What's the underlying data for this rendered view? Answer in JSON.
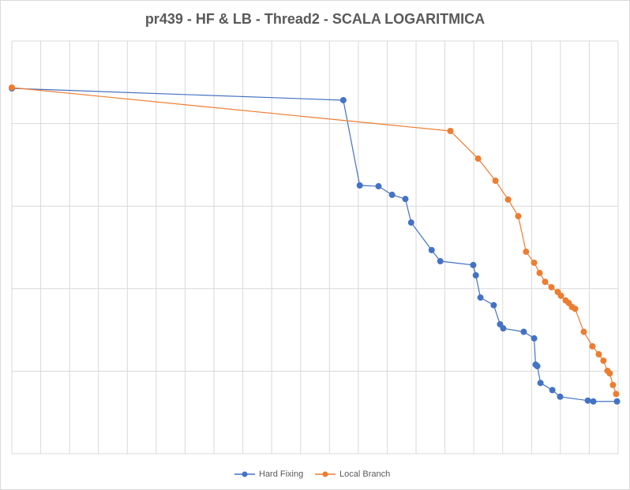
{
  "chart_data": {
    "type": "line",
    "title": "pr439 - HF & LB - Thread2 - SCALA LOGARITMICA",
    "series": [
      {
        "name": "Hard Fixing",
        "color": "#4472c4",
        "x": [
          0,
          11.48,
          12.05,
          12.7,
          13.17,
          13.63,
          13.83,
          14.54,
          14.84,
          15.98,
          16.07,
          16.23,
          16.69,
          16.91,
          17.02,
          17.73,
          18.09,
          18.14,
          18.2,
          18.31,
          18.72,
          18.99,
          19.95,
          20.14,
          20.96
        ],
        "values": [
          26700,
          19200,
          1780,
          1740,
          1370,
          1220,
          632,
          293,
          215,
          193,
          145,
          78,
          63,
          37,
          33,
          30,
          25,
          12,
          11.5,
          7.2,
          5.9,
          4.9,
          4.4,
          4.3,
          4.3
        ]
      },
      {
        "name": "Local Branch",
        "color": "#ed7d31",
        "x": [
          0,
          15.19,
          16.15,
          16.75,
          17.19,
          17.54,
          17.81,
          18.09,
          18.28,
          18.47,
          18.69,
          18.91,
          19.02,
          19.18,
          19.29,
          19.4,
          19.51,
          19.81,
          20.11,
          20.33,
          20.49,
          20.63,
          20.71,
          20.82,
          20.93
        ],
        "values": [
          27300,
          8130,
          3760,
          2030,
          1200,
          755,
          280,
          206,
          155,
          121,
          104,
          91,
          82,
          72,
          67,
          60,
          57,
          30,
          20,
          16,
          13.4,
          10.1,
          9.4,
          6.8,
          5.3
        ]
      }
    ],
    "xlim": [
      0,
      21
    ],
    "xticks": [
      0,
      1,
      2,
      3,
      4,
      5,
      6,
      7,
      8,
      9,
      10,
      11,
      12,
      13,
      14,
      15,
      16,
      17,
      18,
      19,
      20,
      21
    ],
    "ylim": [
      1,
      100000
    ],
    "yticks": [
      1,
      10,
      100,
      1000,
      10000,
      100000
    ],
    "y_scale": "log",
    "grid": true,
    "legend": "bottom"
  }
}
